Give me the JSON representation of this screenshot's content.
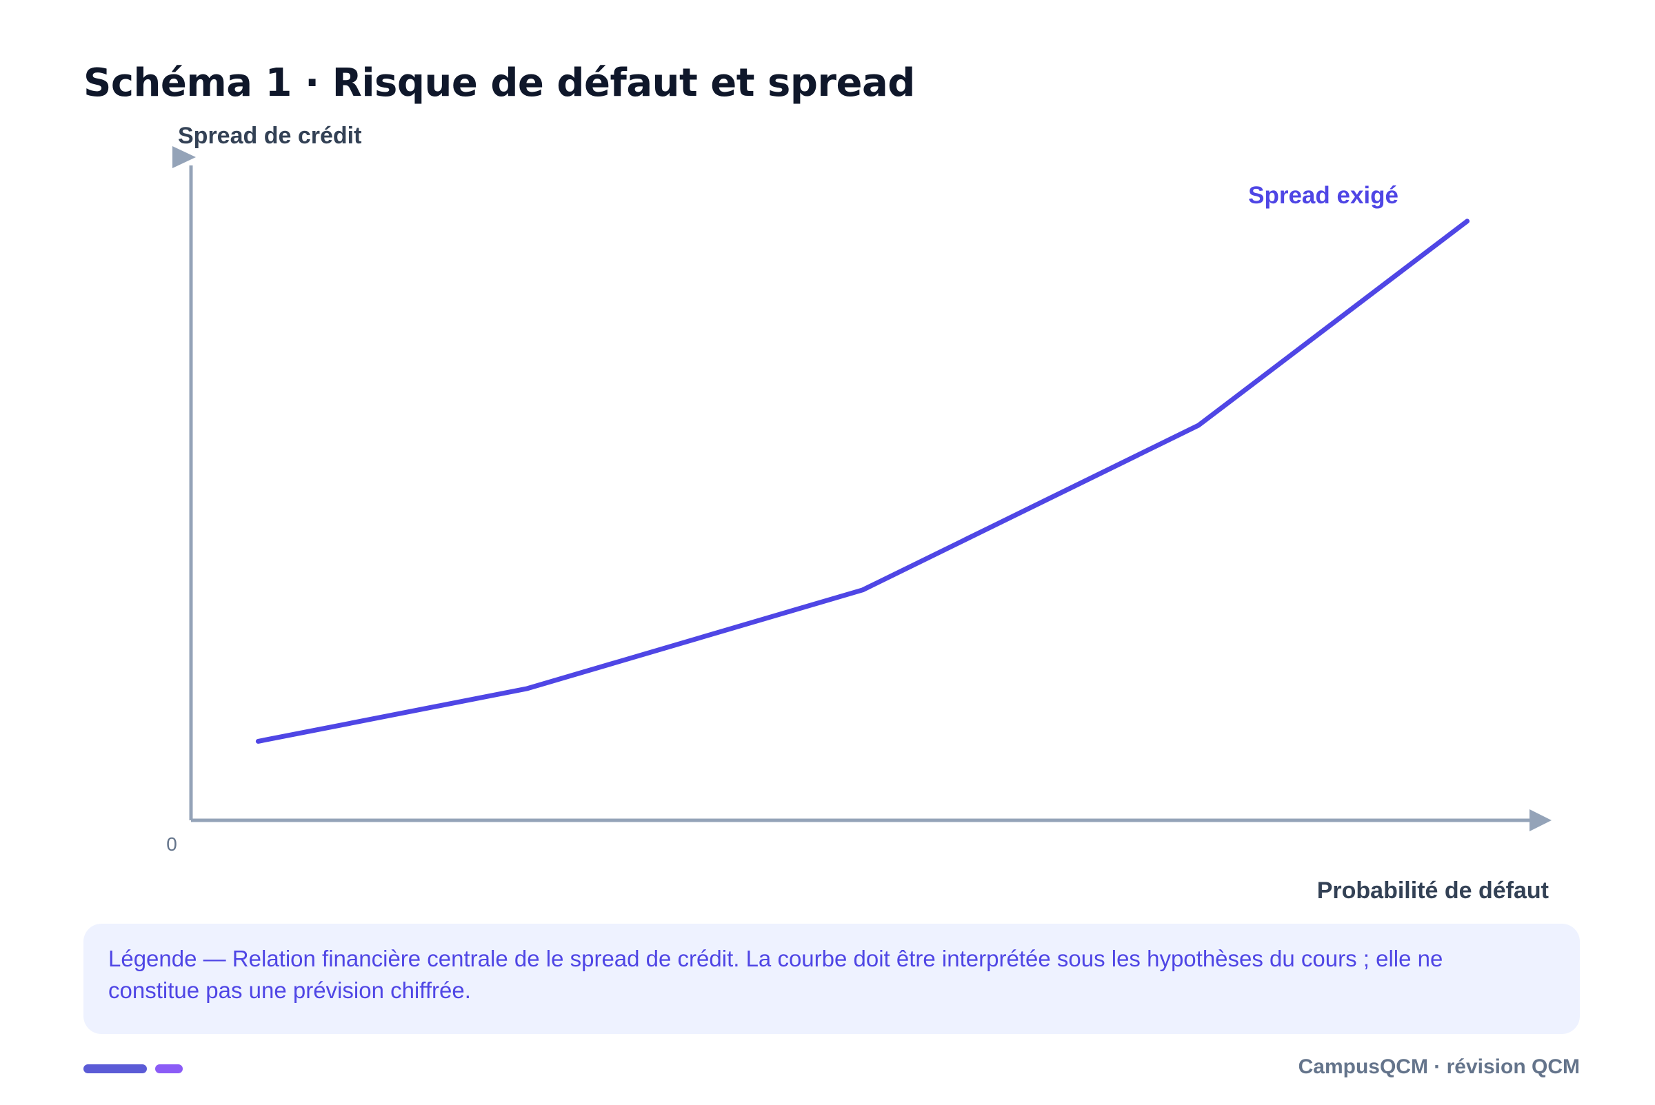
{
  "header": {
    "title": "Schéma 1 · Risque de défaut et spread"
  },
  "chart_data": {
    "type": "line",
    "title": "Schéma 1 · Risque de défaut et spread",
    "xlabel": "Probabilité de défaut",
    "ylabel": "Spread de crédit",
    "origin_label": "0",
    "xlim": [
      0,
      100
    ],
    "ylim": [
      0,
      100
    ],
    "grid": false,
    "series": [
      {
        "name": "Spread exigé",
        "color": "#4f46e5",
        "x": [
          5,
          25,
          50,
          75,
          95
        ],
        "y": [
          12,
          20,
          35,
          60,
          91
        ]
      }
    ],
    "axis_color": "#94a3b8"
  },
  "legend": {
    "text": "Légende — Relation financière centrale de le spread de crédit. La courbe doit être interprétée sous les hypothèses du cours ; elle ne constitue pas une prévision chiffrée."
  },
  "footer": {
    "text": "CampusQCM · révision QCM",
    "pill_colors": [
      "#5b5bd6",
      "#8b5cf6"
    ]
  }
}
